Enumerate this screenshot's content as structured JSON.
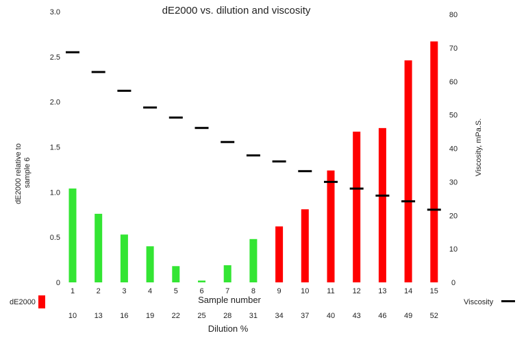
{
  "chart_data": {
    "type": "bar",
    "title": "dE2000 vs. dilution and viscosity",
    "xlabel": "Sample number",
    "xlabel2": "Dilution %",
    "ylabel": "dE2000 relative to sample 6",
    "y2label": "Viscosity, mPa.S.",
    "ylim": [
      0,
      3.0
    ],
    "y2lim": [
      0,
      80
    ],
    "yticks": [
      "0",
      "0.5",
      "1.0",
      "1.5",
      "2.0",
      "2.5",
      "3.0"
    ],
    "y2ticks": [
      "0",
      "10",
      "20",
      "30",
      "40",
      "50",
      "60",
      "70",
      "80"
    ],
    "categories": [
      "1",
      "2",
      "3",
      "4",
      "5",
      "6",
      "7",
      "8",
      "9",
      "10",
      "11",
      "12",
      "13",
      "14",
      "15"
    ],
    "dilution": [
      "10",
      "13",
      "16",
      "19",
      "22",
      "25",
      "28",
      "31",
      "34",
      "37",
      "40",
      "43",
      "46",
      "49",
      "52"
    ],
    "series": [
      {
        "name": "dE2000",
        "axis": "left",
        "render": "bar",
        "values": [
          1.04,
          0.76,
          0.53,
          0.4,
          0.18,
          0.02,
          0.19,
          0.48,
          0.62,
          0.81,
          1.24,
          1.67,
          1.71,
          2.46,
          2.67
        ],
        "colors": [
          "#33e533",
          "#33e533",
          "#33e533",
          "#33e533",
          "#33e533",
          "#33e533",
          "#33e533",
          "#33e533",
          "#ff0000",
          "#ff0000",
          "#ff0000",
          "#ff0000",
          "#ff0000",
          "#ff0000",
          "#ff0000"
        ]
      },
      {
        "name": "Viscosity",
        "axis": "right",
        "render": "marker",
        "color": "#000000",
        "values": [
          68.7,
          62.8,
          57.2,
          52.2,
          49.2,
          46.1,
          41.9,
          37.9,
          36.1,
          33.2,
          30.0,
          28.0,
          25.9,
          24.2,
          21.7
        ]
      }
    ],
    "legend": {
      "dE2000_label": "dE2000",
      "dE2000_color": "#ff0000",
      "viscosity_label": "Viscosity",
      "viscosity_color": "#000000"
    },
    "grid": false
  }
}
